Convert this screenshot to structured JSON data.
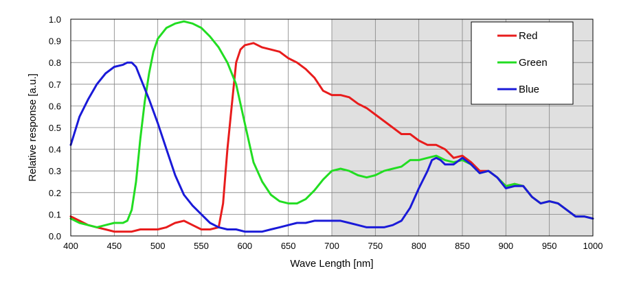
{
  "chart_data": {
    "type": "line",
    "title": "",
    "xlabel": "Wave Length [nm]",
    "ylabel": "Relative response [a.u.]",
    "xlim": [
      400,
      1000
    ],
    "ylim": [
      0.0,
      1.0
    ],
    "x_ticks": [
      400,
      450,
      500,
      550,
      600,
      650,
      700,
      750,
      800,
      850,
      900,
      950,
      1000
    ],
    "y_ticks": [
      0.0,
      0.1,
      0.2,
      0.3,
      0.4,
      0.5,
      0.6,
      0.7,
      0.8,
      0.9,
      1.0
    ],
    "y_tick_labels": [
      "0.0",
      "0.1",
      "0.2",
      "0.3",
      "0.4",
      "0.5",
      "0.6",
      "0.7",
      "0.8",
      "0.9",
      "1.0"
    ],
    "grid": true,
    "shaded_region": {
      "x_start": 700,
      "x_end": 1000,
      "color": "#e0e0e0"
    },
    "legend_position": "top-right",
    "series": [
      {
        "name": "Red",
        "color": "#e81c1c",
        "points": [
          [
            400,
            0.09
          ],
          [
            410,
            0.07
          ],
          [
            420,
            0.05
          ],
          [
            430,
            0.04
          ],
          [
            440,
            0.03
          ],
          [
            450,
            0.02
          ],
          [
            460,
            0.02
          ],
          [
            470,
            0.02
          ],
          [
            480,
            0.03
          ],
          [
            490,
            0.03
          ],
          [
            500,
            0.03
          ],
          [
            510,
            0.04
          ],
          [
            520,
            0.06
          ],
          [
            530,
            0.07
          ],
          [
            540,
            0.05
          ],
          [
            550,
            0.03
          ],
          [
            560,
            0.03
          ],
          [
            570,
            0.04
          ],
          [
            575,
            0.15
          ],
          [
            580,
            0.4
          ],
          [
            585,
            0.6
          ],
          [
            590,
            0.8
          ],
          [
            595,
            0.86
          ],
          [
            600,
            0.88
          ],
          [
            610,
            0.89
          ],
          [
            620,
            0.87
          ],
          [
            630,
            0.86
          ],
          [
            640,
            0.85
          ],
          [
            650,
            0.82
          ],
          [
            660,
            0.8
          ],
          [
            670,
            0.77
          ],
          [
            680,
            0.73
          ],
          [
            690,
            0.67
          ],
          [
            700,
            0.65
          ],
          [
            710,
            0.65
          ],
          [
            720,
            0.64
          ],
          [
            730,
            0.61
          ],
          [
            740,
            0.59
          ],
          [
            750,
            0.56
          ],
          [
            760,
            0.53
          ],
          [
            770,
            0.5
          ],
          [
            780,
            0.47
          ],
          [
            790,
            0.47
          ],
          [
            800,
            0.44
          ],
          [
            810,
            0.42
          ],
          [
            820,
            0.42
          ],
          [
            830,
            0.4
          ],
          [
            840,
            0.36
          ],
          [
            850,
            0.37
          ],
          [
            860,
            0.34
          ],
          [
            870,
            0.3
          ],
          [
            880,
            0.3
          ],
          [
            890,
            0.27
          ],
          [
            900,
            0.23
          ],
          [
            910,
            0.24
          ],
          [
            920,
            0.23
          ],
          [
            930,
            0.18
          ],
          [
            940,
            0.15
          ],
          [
            950,
            0.16
          ],
          [
            960,
            0.15
          ],
          [
            970,
            0.12
          ],
          [
            980,
            0.09
          ],
          [
            990,
            0.09
          ],
          [
            1000,
            0.08
          ]
        ]
      },
      {
        "name": "Green",
        "color": "#22dd22",
        "points": [
          [
            400,
            0.08
          ],
          [
            410,
            0.06
          ],
          [
            420,
            0.05
          ],
          [
            430,
            0.04
          ],
          [
            440,
            0.05
          ],
          [
            450,
            0.06
          ],
          [
            460,
            0.06
          ],
          [
            465,
            0.07
          ],
          [
            470,
            0.12
          ],
          [
            475,
            0.25
          ],
          [
            480,
            0.45
          ],
          [
            485,
            0.62
          ],
          [
            490,
            0.75
          ],
          [
            495,
            0.85
          ],
          [
            500,
            0.91
          ],
          [
            510,
            0.96
          ],
          [
            520,
            0.98
          ],
          [
            530,
            0.99
          ],
          [
            540,
            0.98
          ],
          [
            550,
            0.96
          ],
          [
            560,
            0.92
          ],
          [
            570,
            0.87
          ],
          [
            580,
            0.8
          ],
          [
            590,
            0.7
          ],
          [
            600,
            0.52
          ],
          [
            610,
            0.34
          ],
          [
            620,
            0.25
          ],
          [
            630,
            0.19
          ],
          [
            640,
            0.16
          ],
          [
            650,
            0.15
          ],
          [
            660,
            0.15
          ],
          [
            670,
            0.17
          ],
          [
            680,
            0.21
          ],
          [
            690,
            0.26
          ],
          [
            700,
            0.3
          ],
          [
            710,
            0.31
          ],
          [
            720,
            0.3
          ],
          [
            730,
            0.28
          ],
          [
            740,
            0.27
          ],
          [
            750,
            0.28
          ],
          [
            760,
            0.3
          ],
          [
            770,
            0.31
          ],
          [
            780,
            0.32
          ],
          [
            790,
            0.35
          ],
          [
            800,
            0.35
          ],
          [
            810,
            0.36
          ],
          [
            820,
            0.37
          ],
          [
            830,
            0.35
          ],
          [
            840,
            0.34
          ],
          [
            850,
            0.35
          ],
          [
            860,
            0.33
          ],
          [
            870,
            0.29
          ],
          [
            880,
            0.3
          ],
          [
            890,
            0.27
          ],
          [
            900,
            0.23
          ],
          [
            910,
            0.24
          ],
          [
            920,
            0.23
          ],
          [
            930,
            0.18
          ],
          [
            940,
            0.15
          ],
          [
            950,
            0.16
          ],
          [
            960,
            0.15
          ],
          [
            970,
            0.12
          ],
          [
            980,
            0.09
          ],
          [
            990,
            0.09
          ],
          [
            1000,
            0.08
          ]
        ]
      },
      {
        "name": "Blue",
        "color": "#1a1ad8",
        "points": [
          [
            400,
            0.42
          ],
          [
            410,
            0.55
          ],
          [
            420,
            0.63
          ],
          [
            430,
            0.7
          ],
          [
            440,
            0.75
          ],
          [
            450,
            0.78
          ],
          [
            460,
            0.79
          ],
          [
            465,
            0.8
          ],
          [
            470,
            0.8
          ],
          [
            475,
            0.78
          ],
          [
            480,
            0.73
          ],
          [
            490,
            0.63
          ],
          [
            500,
            0.52
          ],
          [
            510,
            0.4
          ],
          [
            520,
            0.28
          ],
          [
            530,
            0.19
          ],
          [
            540,
            0.14
          ],
          [
            550,
            0.1
          ],
          [
            560,
            0.06
          ],
          [
            570,
            0.04
          ],
          [
            580,
            0.03
          ],
          [
            590,
            0.03
          ],
          [
            600,
            0.02
          ],
          [
            610,
            0.02
          ],
          [
            620,
            0.02
          ],
          [
            630,
            0.03
          ],
          [
            640,
            0.04
          ],
          [
            650,
            0.05
          ],
          [
            660,
            0.06
          ],
          [
            670,
            0.06
          ],
          [
            680,
            0.07
          ],
          [
            690,
            0.07
          ],
          [
            700,
            0.07
          ],
          [
            710,
            0.07
          ],
          [
            720,
            0.06
          ],
          [
            730,
            0.05
          ],
          [
            740,
            0.04
          ],
          [
            750,
            0.04
          ],
          [
            760,
            0.04
          ],
          [
            770,
            0.05
          ],
          [
            780,
            0.07
          ],
          [
            790,
            0.13
          ],
          [
            800,
            0.22
          ],
          [
            810,
            0.3
          ],
          [
            815,
            0.35
          ],
          [
            820,
            0.36
          ],
          [
            825,
            0.35
          ],
          [
            830,
            0.33
          ],
          [
            840,
            0.33
          ],
          [
            850,
            0.36
          ],
          [
            860,
            0.33
          ],
          [
            870,
            0.29
          ],
          [
            880,
            0.3
          ],
          [
            890,
            0.27
          ],
          [
            900,
            0.22
          ],
          [
            910,
            0.23
          ],
          [
            920,
            0.23
          ],
          [
            930,
            0.18
          ],
          [
            940,
            0.15
          ],
          [
            950,
            0.16
          ],
          [
            960,
            0.15
          ],
          [
            970,
            0.12
          ],
          [
            980,
            0.09
          ],
          [
            990,
            0.09
          ],
          [
            1000,
            0.08
          ]
        ]
      }
    ]
  }
}
